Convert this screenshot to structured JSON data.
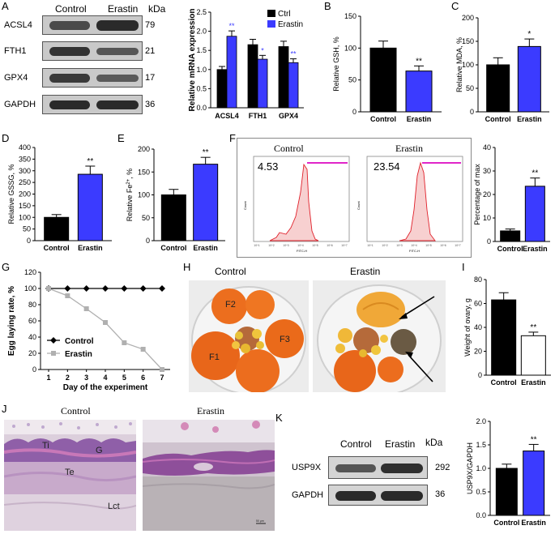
{
  "panels": {
    "A": "A",
    "B": "B",
    "C": "C",
    "D": "D",
    "E": "E",
    "F": "F",
    "G": "G",
    "H": "H",
    "I": "I",
    "J": "J",
    "K": "K"
  },
  "colors": {
    "ctrl": "#000000",
    "erastin": "#3b3bff",
    "line_ctrl": "#000000",
    "line_erastin": "#b0b0b0",
    "flow_fill": "#f7d0d0",
    "flow_line": "#e0202a",
    "gate": "#e026c8"
  },
  "blotA": {
    "headers": [
      "Control",
      "Erastin"
    ],
    "unit": "kDa",
    "rows": [
      {
        "name": "ACSL4",
        "kda": "79"
      },
      {
        "name": "FTH1",
        "kda": "21"
      },
      {
        "name": "GPX4",
        "kda": "17"
      },
      {
        "name": "GAPDH",
        "kda": "36"
      }
    ]
  },
  "blotK": {
    "headers": [
      "Control",
      "Erastin"
    ],
    "unit": "kDa",
    "rows": [
      {
        "name": "USP9X",
        "kda": "292"
      },
      {
        "name": "GAPDH",
        "kda": "36"
      }
    ]
  },
  "flow": {
    "titles": [
      "Control",
      "Erastin"
    ],
    "values": [
      "4.53",
      "23.54"
    ],
    "xlabel": "FITC-H",
    "ylabel": "Count",
    "ticks": [
      "10^1",
      "10^2",
      "10^3",
      "10^4",
      "10^5",
      "10^6",
      "10^7"
    ]
  },
  "photoH": {
    "titles": [
      "Control",
      "Erastin"
    ],
    "follicles": [
      "F2",
      "F3",
      "F1"
    ]
  },
  "histJ": {
    "titles": [
      "Control",
      "Erastin"
    ],
    "labels": [
      "Ti",
      "G",
      "Te",
      "Lct"
    ],
    "scale": "50 μm"
  },
  "chart_data": [
    {
      "id": "A",
      "type": "bar",
      "categories": [
        "ACSL4",
        "FTH1",
        "GPX4"
      ],
      "series": [
        {
          "name": "Ctrl",
          "values": [
            1.0,
            1.65,
            1.6
          ],
          "errors": [
            0.08,
            0.14,
            0.14
          ]
        },
        {
          "name": "Erastin",
          "values": [
            1.87,
            1.27,
            1.18
          ],
          "errors": [
            0.14,
            0.1,
            0.1
          ]
        }
      ],
      "sig": [
        "**",
        "*",
        "**"
      ],
      "ylabel": "Relative mRNA expression",
      "ylim": [
        0,
        2.5
      ],
      "yticks": [
        "0.0",
        "0.5",
        "1.0",
        "1.5",
        "2.0",
        "2.5"
      ]
    },
    {
      "id": "B",
      "type": "bar",
      "categories": [
        "Control",
        "Erastin"
      ],
      "values": [
        100,
        64
      ],
      "errors": [
        11,
        8
      ],
      "sig": "**",
      "ylabel": "Relative GSH, %",
      "ylim": [
        0,
        150
      ],
      "yticks": [
        "0",
        "50",
        "100",
        "150"
      ]
    },
    {
      "id": "C",
      "type": "bar",
      "categories": [
        "Control",
        "Erastin"
      ],
      "values": [
        100,
        139
      ],
      "errors": [
        15,
        16
      ],
      "sig": "*",
      "ylabel": "Relative MDA, %",
      "ylim": [
        0,
        200
      ],
      "yticks": [
        "0",
        "50",
        "100",
        "150",
        "200"
      ]
    },
    {
      "id": "D",
      "type": "bar",
      "categories": [
        "Control",
        "Erastin"
      ],
      "values": [
        100,
        285
      ],
      "errors": [
        12,
        35
      ],
      "sig": "**",
      "ylabel": "Relative GSSG, %",
      "ylim": [
        0,
        400
      ],
      "yticks": [
        "0",
        "50",
        "100",
        "150",
        "200",
        "250",
        "300",
        "350",
        "400"
      ]
    },
    {
      "id": "E",
      "type": "bar",
      "categories": [
        "Control",
        "Erastin"
      ],
      "values": [
        100,
        167
      ],
      "errors": [
        12,
        15
      ],
      "sig": "**",
      "ylabel": "Relative Fe2+, %",
      "ylim": [
        0,
        200
      ],
      "yticks": [
        "0",
        "50",
        "100",
        "150",
        "200"
      ]
    },
    {
      "id": "F",
      "type": "bar",
      "categories": [
        "Control",
        "Erastin"
      ],
      "values": [
        4.5,
        23.5
      ],
      "errors": [
        0.8,
        3.5
      ],
      "sig": "**",
      "ylabel": "Percentage of max",
      "ylim": [
        0,
        40
      ],
      "yticks": [
        "0",
        "10",
        "20",
        "30",
        "40"
      ]
    },
    {
      "id": "G",
      "type": "line",
      "x": [
        1,
        2,
        3,
        4,
        5,
        6,
        7
      ],
      "series": [
        {
          "name": "Control",
          "values": [
            100,
            100,
            100,
            100,
            100,
            100,
            100
          ]
        },
        {
          "name": "Erastin",
          "values": [
            100,
            91,
            75,
            58,
            33,
            25,
            0
          ]
        }
      ],
      "xlabel": "Day of the experiment",
      "ylabel": "Egg laying rate, %",
      "ylim": [
        0,
        120
      ],
      "yticks": [
        "0",
        "20",
        "40",
        "60",
        "80",
        "100",
        "120"
      ],
      "xticks": [
        "1",
        "2",
        "3",
        "4",
        "5",
        "6",
        "7"
      ]
    },
    {
      "id": "I",
      "type": "bar",
      "categories": [
        "Control",
        "Erastin"
      ],
      "values": [
        63,
        33
      ],
      "errors": [
        6,
        3
      ],
      "sig": "**",
      "ylabel": "Weight of ovary, g",
      "ylim": [
        0,
        80
      ],
      "yticks": [
        "0",
        "20",
        "40",
        "60",
        "80"
      ]
    },
    {
      "id": "K",
      "type": "bar",
      "categories": [
        "Control",
        "Erastin"
      ],
      "values": [
        1.0,
        1.37
      ],
      "errors": [
        0.09,
        0.14
      ],
      "sig": "**",
      "ylabel": "USP9X/GAPDH",
      "ylim": [
        0,
        2.0
      ],
      "yticks": [
        "0.0",
        "0.5",
        "1.0",
        "1.5",
        "2.0"
      ]
    }
  ]
}
